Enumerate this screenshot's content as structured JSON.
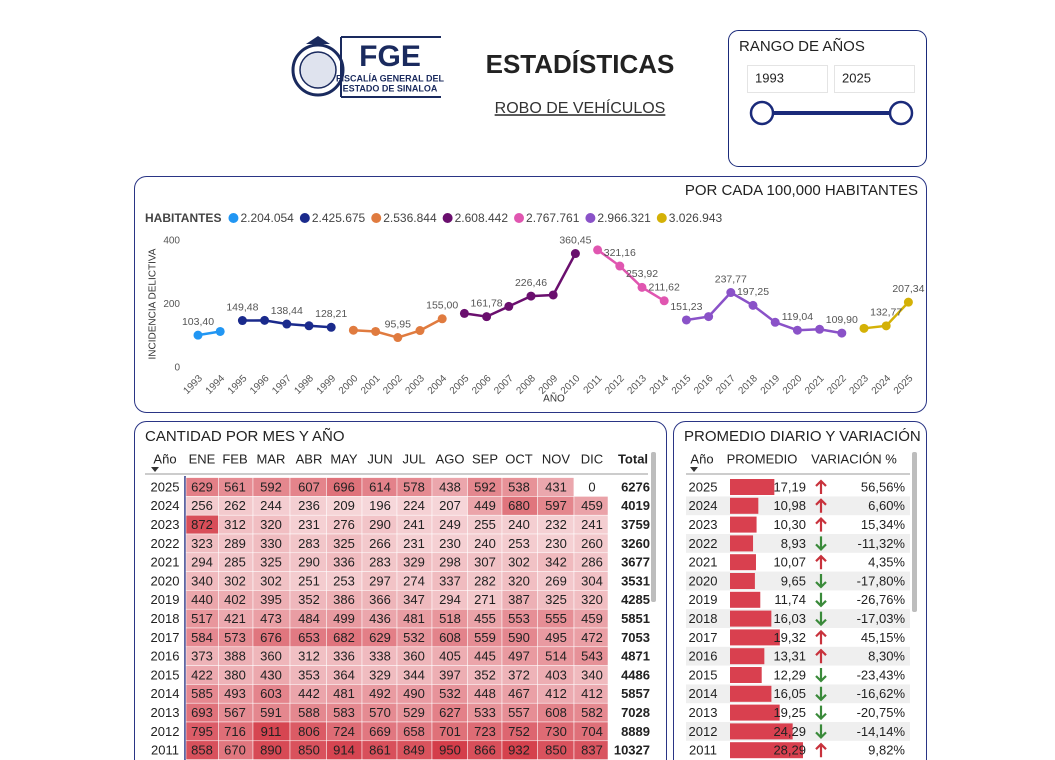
{
  "header": {
    "logo": {
      "acronym": "FGE",
      "line1": "FISCALÍA GENERAL DEL",
      "line2": "ESTADO DE SINALOA"
    },
    "title": "ESTADÍSTICAS",
    "subtitle": "ROBO DE VEHÍCULOS"
  },
  "range_slicer": {
    "title": "RANGO DE AÑOS",
    "start": "1993",
    "end": "2025"
  },
  "chart_data": {
    "type": "line",
    "title": "POR CADA 100,000 HABITANTES",
    "legend_title": "HABITANTES",
    "x_label": "AÑO",
    "y_label": "INCIDENCIA DELICTIVA",
    "categories": [
      "1993",
      "1994",
      "1995",
      "1996",
      "1997",
      "1998",
      "1999",
      "2000",
      "2001",
      "2002",
      "2003",
      "2004",
      "2005",
      "2006",
      "2007",
      "2008",
      "2009",
      "2010",
      "2011",
      "2012",
      "2013",
      "2014",
      "2015",
      "2016",
      "2017",
      "2018",
      "2019",
      "2020",
      "2021",
      "2022",
      "2023",
      "2024",
      "2025"
    ],
    "ylim": [
      0,
      400
    ],
    "yticks": [
      0,
      200,
      400
    ],
    "series": [
      {
        "name": "2.204.054",
        "color": "#2196f3",
        "values": [
          103.4,
          115,
          null,
          null,
          null,
          null,
          null,
          null,
          null,
          null,
          null,
          null,
          null,
          null,
          null,
          null,
          null,
          null,
          null,
          null,
          null,
          null,
          null,
          null,
          null,
          null,
          null,
          null,
          null,
          null,
          null,
          null,
          null
        ],
        "value_labels": [
          "103,40",
          null,
          null,
          null,
          null,
          null,
          null,
          null,
          null,
          null,
          null,
          null,
          null,
          null,
          null,
          null,
          null,
          null,
          null,
          null,
          null,
          null,
          null,
          null,
          null,
          null,
          null,
          null,
          null,
          null,
          null,
          null,
          null
        ]
      },
      {
        "name": "2.425.675",
        "color": "#1a2a8c",
        "values": [
          null,
          null,
          149.48,
          150,
          138.44,
          133,
          128.21,
          null,
          null,
          null,
          null,
          null,
          null,
          null,
          null,
          null,
          null,
          null,
          null,
          null,
          null,
          null,
          null,
          null,
          null,
          null,
          null,
          null,
          null,
          null,
          null,
          null,
          null
        ],
        "value_labels": [
          null,
          null,
          "149,48",
          null,
          "138,44",
          null,
          "128,21",
          null,
          null,
          null,
          null,
          null,
          null,
          null,
          null,
          null,
          null,
          null,
          null,
          null,
          null,
          null,
          null,
          null,
          null,
          null,
          null,
          null,
          null,
          null,
          null,
          null,
          null
        ]
      },
      {
        "name": "2.536.844",
        "color": "#e07b3f",
        "values": [
          null,
          null,
          null,
          null,
          null,
          null,
          null,
          119,
          115,
          95.95,
          118,
          155,
          null,
          null,
          null,
          null,
          null,
          null,
          null,
          null,
          null,
          null,
          null,
          null,
          null,
          null,
          null,
          null,
          null,
          null,
          null,
          null,
          null
        ],
        "value_labels": [
          null,
          null,
          null,
          null,
          null,
          null,
          null,
          null,
          null,
          "95,95",
          null,
          "155,00",
          null,
          null,
          null,
          null,
          null,
          null,
          null,
          null,
          null,
          null,
          null,
          null,
          null,
          null,
          null,
          null,
          null,
          null,
          null,
          null,
          null
        ]
      },
      {
        "name": "2.608.442",
        "color": "#6a0f6e",
        "values": [
          null,
          null,
          null,
          null,
          null,
          null,
          null,
          null,
          null,
          null,
          null,
          null,
          172,
          161.78,
          194,
          226.46,
          230,
          360.45,
          null,
          null,
          null,
          null,
          null,
          null,
          null,
          null,
          null,
          null,
          null,
          null,
          null,
          null,
          null
        ],
        "value_labels": [
          null,
          null,
          null,
          null,
          null,
          null,
          null,
          null,
          null,
          null,
          null,
          null,
          null,
          "161,78",
          null,
          "226,46",
          null,
          "360,45",
          null,
          null,
          null,
          null,
          null,
          null,
          null,
          null,
          null,
          null,
          null,
          null,
          null,
          null,
          null
        ]
      },
      {
        "name": "2.767.761",
        "color": "#e056b0",
        "values": [
          null,
          null,
          null,
          null,
          null,
          null,
          null,
          null,
          null,
          null,
          null,
          null,
          null,
          null,
          null,
          null,
          null,
          null,
          372,
          321.16,
          253.92,
          211.62,
          null,
          null,
          null,
          null,
          null,
          null,
          null,
          null,
          null,
          null,
          null
        ],
        "value_labels": [
          null,
          null,
          null,
          null,
          null,
          null,
          null,
          null,
          null,
          null,
          null,
          null,
          null,
          null,
          null,
          null,
          null,
          null,
          null,
          "321,16",
          "253,92",
          "211,62",
          null,
          null,
          null,
          null,
          null,
          null,
          null,
          null,
          null,
          null,
          null
        ]
      },
      {
        "name": "2.966.321",
        "color": "#8a52c8",
        "values": [
          null,
          null,
          null,
          null,
          null,
          null,
          null,
          null,
          null,
          null,
          null,
          null,
          null,
          null,
          null,
          null,
          null,
          null,
          null,
          null,
          null,
          null,
          151.23,
          162,
          237.77,
          197.25,
          144,
          119.04,
          122,
          109.9,
          null,
          null,
          null
        ],
        "value_labels": [
          null,
          null,
          null,
          null,
          null,
          null,
          null,
          null,
          null,
          null,
          null,
          null,
          null,
          null,
          null,
          null,
          null,
          null,
          null,
          null,
          null,
          null,
          "151,23",
          null,
          "237,77",
          "197,25",
          null,
          "119,04",
          null,
          "109,90",
          null,
          null,
          null
        ]
      },
      {
        "name": "3.026.943",
        "color": "#d4b106",
        "values": [
          null,
          null,
          null,
          null,
          null,
          null,
          null,
          null,
          null,
          null,
          null,
          null,
          null,
          null,
          null,
          null,
          null,
          null,
          null,
          null,
          null,
          null,
          null,
          null,
          null,
          null,
          null,
          null,
          null,
          null,
          125,
          132.77,
          207.34
        ],
        "value_labels": [
          null,
          null,
          null,
          null,
          null,
          null,
          null,
          null,
          null,
          null,
          null,
          null,
          null,
          null,
          null,
          null,
          null,
          null,
          null,
          null,
          null,
          null,
          null,
          null,
          null,
          null,
          null,
          null,
          null,
          null,
          null,
          "132,77",
          "207,34"
        ]
      }
    ]
  },
  "monthly_table": {
    "title": "CANTIDAD POR MES Y AÑO",
    "columns": [
      "Año",
      "ENE",
      "FEB",
      "MAR",
      "ABR",
      "MAY",
      "JUN",
      "JUL",
      "AGO",
      "SEP",
      "OCT",
      "NOV",
      "DIC",
      "Total"
    ],
    "rows": [
      [
        "2025",
        629,
        561,
        592,
        607,
        696,
        614,
        578,
        438,
        592,
        538,
        431,
        0,
        6276
      ],
      [
        "2024",
        256,
        262,
        244,
        236,
        209,
        196,
        224,
        207,
        449,
        680,
        597,
        459,
        4019
      ],
      [
        "2023",
        872,
        312,
        320,
        231,
        276,
        290,
        241,
        249,
        255,
        240,
        232,
        241,
        3759
      ],
      [
        "2022",
        323,
        289,
        330,
        283,
        325,
        266,
        231,
        230,
        240,
        253,
        230,
        260,
        3260
      ],
      [
        "2021",
        294,
        285,
        325,
        290,
        336,
        283,
        329,
        298,
        307,
        302,
        342,
        286,
        3677
      ],
      [
        "2020",
        340,
        302,
        302,
        251,
        253,
        297,
        274,
        337,
        282,
        320,
        269,
        304,
        3531
      ],
      [
        "2019",
        440,
        402,
        395,
        352,
        386,
        366,
        347,
        294,
        271,
        387,
        325,
        320,
        4285
      ],
      [
        "2018",
        517,
        421,
        473,
        484,
        499,
        436,
        481,
        518,
        455,
        553,
        555,
        459,
        5851
      ],
      [
        "2017",
        584,
        573,
        676,
        653,
        682,
        629,
        532,
        608,
        559,
        590,
        495,
        472,
        7053
      ],
      [
        "2016",
        373,
        388,
        360,
        312,
        336,
        338,
        360,
        405,
        445,
        497,
        514,
        543,
        4871
      ],
      [
        "2015",
        422,
        380,
        430,
        353,
        364,
        329,
        344,
        397,
        352,
        372,
        403,
        340,
        4486
      ],
      [
        "2014",
        585,
        493,
        603,
        442,
        481,
        492,
        490,
        532,
        448,
        467,
        412,
        412,
        5857
      ],
      [
        "2013",
        693,
        567,
        591,
        588,
        583,
        570,
        529,
        627,
        533,
        557,
        608,
        582,
        7028
      ],
      [
        "2012",
        795,
        716,
        911,
        806,
        724,
        669,
        658,
        701,
        723,
        752,
        730,
        704,
        8889
      ],
      [
        "2011",
        858,
        670,
        890,
        850,
        914,
        861,
        849,
        950,
        866,
        932,
        850,
        837,
        10327
      ]
    ]
  },
  "daily_table": {
    "title": "PROMEDIO DIARIO Y VARIACIÓN",
    "columns": [
      "Año",
      "PROMEDIO",
      "VARIACIÓN %"
    ],
    "rows": [
      {
        "year": "2025",
        "promedio": {
          "value": 17.19,
          "label": "17,19"
        },
        "variacion": {
          "value": 56.56,
          "label": "56,56%"
        }
      },
      {
        "year": "2024",
        "promedio": {
          "value": 10.98,
          "label": "10,98"
        },
        "variacion": {
          "value": 6.6,
          "label": "6,60%"
        }
      },
      {
        "year": "2023",
        "promedio": {
          "value": 10.3,
          "label": "10,30"
        },
        "variacion": {
          "value": 15.34,
          "label": "15,34%"
        }
      },
      {
        "year": "2022",
        "promedio": {
          "value": 8.93,
          "label": "8,93"
        },
        "variacion": {
          "value": -11.32,
          "label": "-11,32%"
        }
      },
      {
        "year": "2021",
        "promedio": {
          "value": 10.07,
          "label": "10,07"
        },
        "variacion": {
          "value": 4.35,
          "label": "4,35%"
        }
      },
      {
        "year": "2020",
        "promedio": {
          "value": 9.65,
          "label": "9,65"
        },
        "variacion": {
          "value": -17.8,
          "label": "-17,80%"
        }
      },
      {
        "year": "2019",
        "promedio": {
          "value": 11.74,
          "label": "11,74"
        },
        "variacion": {
          "value": -26.76,
          "label": "-26,76%"
        }
      },
      {
        "year": "2018",
        "promedio": {
          "value": 16.03,
          "label": "16,03"
        },
        "variacion": {
          "value": -17.03,
          "label": "-17,03%"
        }
      },
      {
        "year": "2017",
        "promedio": {
          "value": 19.32,
          "label": "19,32"
        },
        "variacion": {
          "value": 45.15,
          "label": "45,15%"
        }
      },
      {
        "year": "2016",
        "promedio": {
          "value": 13.31,
          "label": "13,31"
        },
        "variacion": {
          "value": 8.3,
          "label": "8,30%"
        }
      },
      {
        "year": "2015",
        "promedio": {
          "value": 12.29,
          "label": "12,29"
        },
        "variacion": {
          "value": -23.43,
          "label": "-23,43%"
        }
      },
      {
        "year": "2014",
        "promedio": {
          "value": 16.05,
          "label": "16,05"
        },
        "variacion": {
          "value": -16.62,
          "label": "-16,62%"
        }
      },
      {
        "year": "2013",
        "promedio": {
          "value": 19.25,
          "label": "19,25"
        },
        "variacion": {
          "value": -20.75,
          "label": "-20,75%"
        }
      },
      {
        "year": "2012",
        "promedio": {
          "value": 24.29,
          "label": "24,29"
        },
        "variacion": {
          "value": -14.14,
          "label": "-14,14%"
        }
      },
      {
        "year": "2011",
        "promedio": {
          "value": 28.29,
          "label": "28,29"
        },
        "variacion": {
          "value": 9.82,
          "label": "9,82%"
        }
      }
    ]
  }
}
